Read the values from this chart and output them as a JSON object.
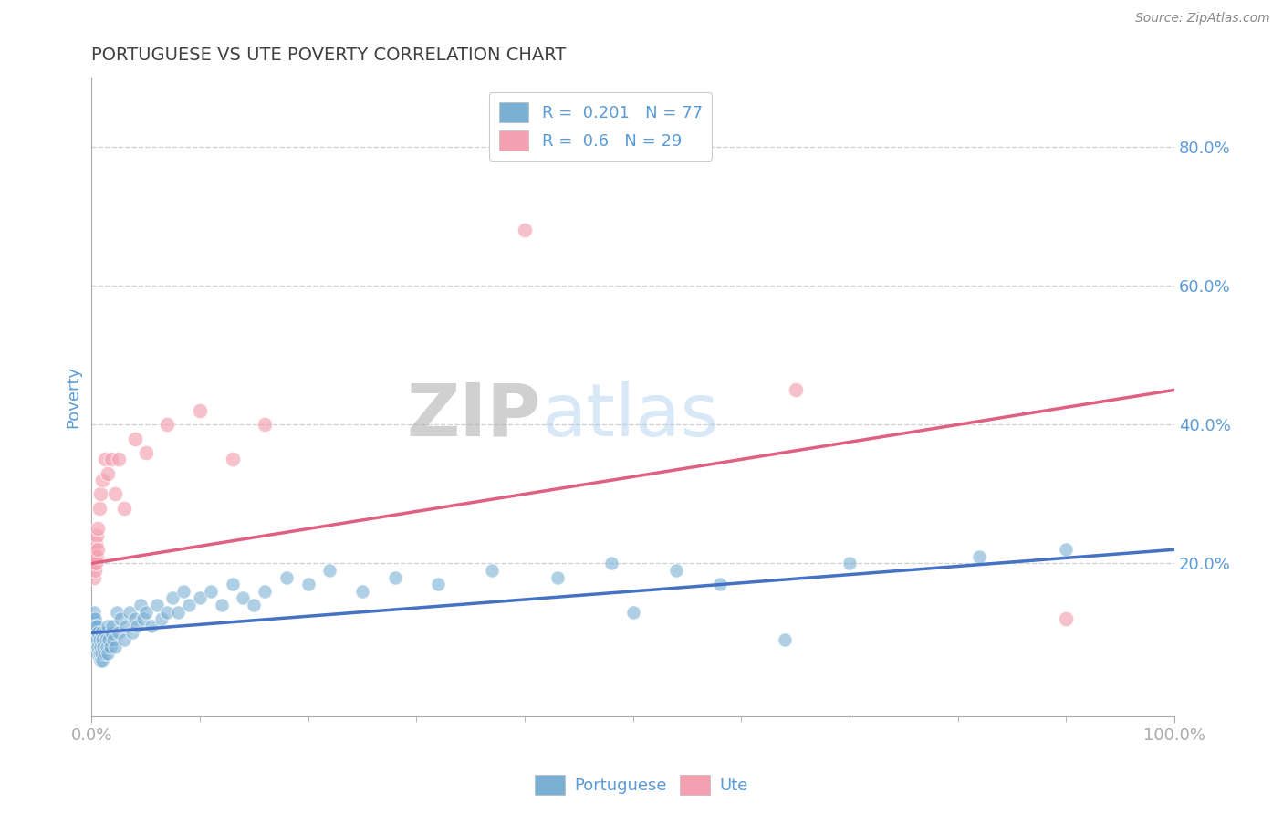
{
  "title": "PORTUGUESE VS UTE POVERTY CORRELATION CHART",
  "source_text": "Source: ZipAtlas.com",
  "ylabel": "Poverty",
  "watermark_zip": "ZIP",
  "watermark_atlas": "atlas",
  "xlim": [
    0.0,
    1.0
  ],
  "ylim": [
    -0.02,
    0.9
  ],
  "yticks": [
    0.2,
    0.4,
    0.6,
    0.8
  ],
  "ytick_labels": [
    "20.0%",
    "40.0%",
    "60.0%",
    "80.0%"
  ],
  "xticks": [
    0.0,
    1.0
  ],
  "xtick_labels": [
    "0.0%",
    "100.0%"
  ],
  "portuguese_R": 0.201,
  "portuguese_N": 77,
  "ute_R": 0.6,
  "ute_N": 29,
  "blue_color": "#7BAFD4",
  "pink_color": "#F4A0B0",
  "blue_line_color": "#4472C4",
  "pink_line_color": "#E06080",
  "title_color": "#404040",
  "axis_label_color": "#5B9BD5",
  "background_color": "#FFFFFF",
  "legend_color": "#5B9BD5",
  "grid_color": "#CCCCCC",
  "portuguese_x": [
    0.001,
    0.002,
    0.002,
    0.003,
    0.003,
    0.003,
    0.004,
    0.004,
    0.005,
    0.005,
    0.005,
    0.006,
    0.006,
    0.007,
    0.007,
    0.008,
    0.008,
    0.009,
    0.009,
    0.01,
    0.01,
    0.011,
    0.012,
    0.012,
    0.013,
    0.014,
    0.015,
    0.015,
    0.016,
    0.017,
    0.018,
    0.019,
    0.02,
    0.022,
    0.023,
    0.025,
    0.027,
    0.03,
    0.032,
    0.035,
    0.038,
    0.04,
    0.042,
    0.045,
    0.048,
    0.05,
    0.055,
    0.06,
    0.065,
    0.07,
    0.075,
    0.08,
    0.085,
    0.09,
    0.1,
    0.11,
    0.12,
    0.13,
    0.14,
    0.15,
    0.16,
    0.18,
    0.2,
    0.22,
    0.25,
    0.28,
    0.32,
    0.37,
    0.43,
    0.48,
    0.5,
    0.54,
    0.58,
    0.64,
    0.7,
    0.82,
    0.9
  ],
  "portuguese_y": [
    0.12,
    0.13,
    0.11,
    0.1,
    0.09,
    0.12,
    0.08,
    0.11,
    0.07,
    0.09,
    0.11,
    0.08,
    0.1,
    0.07,
    0.09,
    0.06,
    0.08,
    0.07,
    0.1,
    0.06,
    0.09,
    0.08,
    0.07,
    0.1,
    0.09,
    0.08,
    0.07,
    0.11,
    0.09,
    0.08,
    0.1,
    0.11,
    0.09,
    0.08,
    0.13,
    0.1,
    0.12,
    0.09,
    0.11,
    0.13,
    0.1,
    0.12,
    0.11,
    0.14,
    0.12,
    0.13,
    0.11,
    0.14,
    0.12,
    0.13,
    0.15,
    0.13,
    0.16,
    0.14,
    0.15,
    0.16,
    0.14,
    0.17,
    0.15,
    0.14,
    0.16,
    0.18,
    0.17,
    0.19,
    0.16,
    0.18,
    0.17,
    0.19,
    0.18,
    0.2,
    0.13,
    0.19,
    0.17,
    0.09,
    0.2,
    0.21,
    0.22
  ],
  "ute_x": [
    0.001,
    0.002,
    0.002,
    0.003,
    0.003,
    0.004,
    0.004,
    0.005,
    0.005,
    0.006,
    0.006,
    0.007,
    0.008,
    0.01,
    0.012,
    0.015,
    0.018,
    0.022,
    0.025,
    0.03,
    0.04,
    0.05,
    0.07,
    0.1,
    0.13,
    0.16,
    0.4,
    0.65,
    0.9
  ],
  "ute_y": [
    0.2,
    0.18,
    0.22,
    0.19,
    0.21,
    0.2,
    0.23,
    0.24,
    0.21,
    0.25,
    0.22,
    0.28,
    0.3,
    0.32,
    0.35,
    0.33,
    0.35,
    0.3,
    0.35,
    0.28,
    0.38,
    0.36,
    0.4,
    0.42,
    0.35,
    0.4,
    0.68,
    0.45,
    0.12
  ],
  "trend_port_start": 0.1,
  "trend_port_end": 0.22,
  "trend_ute_start": 0.2,
  "trend_ute_end": 0.45
}
